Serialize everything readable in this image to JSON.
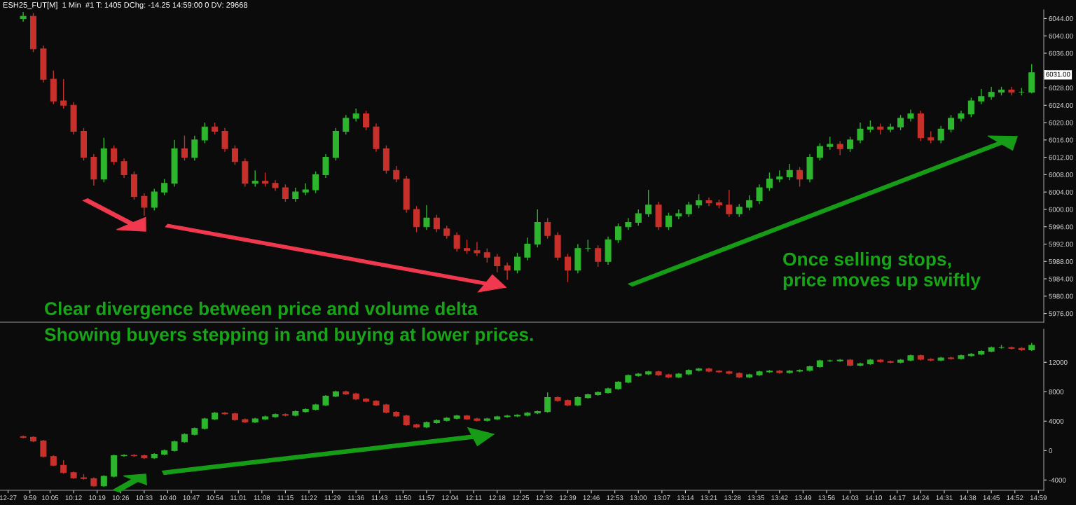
{
  "chart_data": [
    {
      "type": "candlestick",
      "title": "ESH25_FUT[M]  1 Min  #1 T: 1405 DChg: -14.25 14:59:00 0 DV: 29668",
      "colors": [
        "#2db52d",
        "#c8312b",
        "#c8312b",
        "#c8312b",
        "#c8312b",
        "#c8312b",
        "#c8312b",
        "#c8312b",
        "#2db52d",
        "#c8312b",
        "#c8312b",
        "#c8312b",
        "#c8312b",
        "#2db52d",
        "#2db52d",
        "#2db52d",
        "#c8312b",
        "#2db52d",
        "#2db52d",
        "#c8312b",
        "#c8312b",
        "#c8312b",
        "#c8312b",
        "#2db52d",
        "#c8312b",
        "#c8312b",
        "#c8312b",
        "#2db52d",
        "#2db52d",
        "#2db52d",
        "#2db52d",
        "#2db52d",
        "#2db52d",
        "#2db52d",
        "#c8312b",
        "#c8312b",
        "#c8312b",
        "#c8312b",
        "#c8312b",
        "#c8312b",
        "#2db52d",
        "#c8312b",
        "#c8312b",
        "#c8312b",
        "#c8312b",
        "#c8312b",
        "#c8312b",
        "#c8312b",
        "#c8312b",
        "#2db52d",
        "#2db52d",
        "#2db52d",
        "#c8312b",
        "#c8312b",
        "#c8312b",
        "#2db52d",
        "#2db52d",
        "#c8312b",
        "#2db52d",
        "#2db52d",
        "#2db52d",
        "#2db52d",
        "#2db52d",
        "#c8312b",
        "#2db52d",
        "#2db52d",
        "#2db52d",
        "#2db52d",
        "#c8312b",
        "#c8312b",
        "#c8312b",
        "#2db52d",
        "#2db52d",
        "#2db52d",
        "#2db52d",
        "#2db52d",
        "#2db52d",
        "#c8312b",
        "#2db52d",
        "#2db52d",
        "#2db52d",
        "#c8312b",
        "#2db52d",
        "#2db52d",
        "#2db52d",
        "#c8312b",
        "#2db52d",
        "#2db52d",
        "#2db52d",
        "#c8312b",
        "#c8312b",
        "#2db52d",
        "#2db52d",
        "#2db52d",
        "#2db52d",
        "#2db52d",
        "#2db52d",
        "#2db52d",
        "#c8312b",
        "#2db52d",
        "#2db52d"
      ],
      "x": [
        9.95,
        10.0,
        10.05,
        10.1,
        10.15,
        10.2,
        10.25,
        10.3,
        10.35,
        10.4,
        10.45,
        10.5,
        10.55,
        10.6,
        10.65,
        10.7,
        10.75,
        10.8,
        10.85,
        10.9,
        10.95,
        11.0,
        11.05,
        11.1,
        11.15,
        11.2,
        11.25,
        11.3,
        11.35,
        11.4,
        11.45,
        11.5,
        11.55,
        11.6,
        11.65,
        11.7,
        11.75,
        11.8,
        11.85,
        11.9,
        11.95,
        12.0,
        12.05,
        12.1,
        12.15,
        12.2,
        12.25,
        12.3,
        12.35,
        12.4,
        12.45,
        12.5,
        12.55,
        12.6,
        12.65,
        12.7,
        12.75,
        12.8,
        12.85,
        12.9,
        12.95,
        13.0,
        13.05,
        13.1,
        13.15,
        13.2,
        13.25,
        13.3,
        13.35,
        13.4,
        13.45,
        13.5,
        13.55,
        13.6,
        13.65,
        13.7,
        13.75,
        13.8,
        13.85,
        13.9,
        13.95,
        14.0,
        14.05,
        14.1,
        14.15,
        14.2,
        14.25,
        14.3,
        14.35,
        14.4,
        14.45,
        14.5,
        14.55,
        14.6,
        14.65,
        14.7,
        14.75,
        14.8,
        14.85,
        14.9,
        14.95
      ],
      "ohlc": [
        [
          6044,
          6045.5,
          6043.25,
          6044.5
        ],
        [
          6044.5,
          6045.25,
          6036.25,
          6037
        ],
        [
          6037,
          6037.75,
          6029.25,
          6030
        ],
        [
          6030,
          6032,
          6024.25,
          6025
        ],
        [
          6025,
          6030,
          6023.25,
          6024
        ],
        [
          6024,
          6024.75,
          6017.25,
          6018
        ],
        [
          6018,
          6018.75,
          6011.25,
          6012
        ],
        [
          6012,
          6012.75,
          6005.5,
          6007
        ],
        [
          6007,
          6016.5,
          6006.25,
          6014
        ],
        [
          6014,
          6014.75,
          6010.25,
          6011
        ],
        [
          6011,
          6011.75,
          6007.25,
          6008
        ],
        [
          6008,
          6008.75,
          6002.25,
          6003
        ],
        [
          6003,
          6003.75,
          5998.5,
          6000.5
        ],
        [
          6000.5,
          6004.75,
          5999.75,
          6004
        ],
        [
          6004,
          6007,
          6003.25,
          6006
        ],
        [
          6006,
          6016,
          6005.25,
          6014
        ],
        [
          6014,
          6017,
          6011.25,
          6012
        ],
        [
          6012,
          6017,
          6011.25,
          6016
        ],
        [
          6016,
          6020,
          6015.25,
          6019
        ],
        [
          6019,
          6020,
          6017.25,
          6018
        ],
        [
          6018,
          6018.75,
          6013.25,
          6014
        ],
        [
          6014,
          6014.75,
          6010.25,
          6011
        ],
        [
          6011,
          6011.75,
          6005.25,
          6006
        ],
        [
          6006,
          6009,
          6005.25,
          6006.5
        ],
        [
          6006.5,
          6008.5,
          6005.25,
          6006
        ],
        [
          6006,
          6006.75,
          6004.25,
          6005
        ],
        [
          6005,
          6005.75,
          6001.75,
          6002.5
        ],
        [
          6002.5,
          6005,
          6001.75,
          6004
        ],
        [
          6004,
          6006,
          6003.25,
          6004.5
        ],
        [
          6004.5,
          6008.75,
          6003.75,
          6008
        ],
        [
          6008,
          6012.75,
          6007.25,
          6012
        ],
        [
          6012,
          6018.75,
          6011.25,
          6018
        ],
        [
          6018,
          6021.75,
          6017.25,
          6021
        ],
        [
          6021,
          6023.25,
          6020.25,
          6022
        ],
        [
          6022,
          6022.75,
          6018.25,
          6019
        ],
        [
          6019,
          6019.75,
          6013.25,
          6014
        ],
        [
          6014,
          6014.75,
          6008.25,
          6009
        ],
        [
          6009,
          6010,
          6006.25,
          6007
        ],
        [
          6007,
          6007.75,
          5999.25,
          6000
        ],
        [
          6000,
          6000.75,
          5994.75,
          5996
        ],
        [
          5996,
          6001,
          5995.25,
          5998
        ],
        [
          5998,
          5998.75,
          5994.75,
          5995.5
        ],
        [
          5995.5,
          5996.25,
          5993.25,
          5994
        ],
        [
          5994,
          5994.75,
          5990.25,
          5991
        ],
        [
          5991,
          5993,
          5989.75,
          5990.5
        ],
        [
          5990.5,
          5992.5,
          5989.25,
          5990
        ],
        [
          5990,
          5991,
          5987.75,
          5989
        ],
        [
          5989,
          5989.75,
          5985.5,
          5987
        ],
        [
          5987,
          5987.75,
          5983.75,
          5986
        ],
        [
          5986,
          5990,
          5985.25,
          5989
        ],
        [
          5989,
          5993.5,
          5988.25,
          5992
        ],
        [
          5992,
          6000,
          5991.25,
          5997
        ],
        [
          5997,
          5998,
          5993.25,
          5994
        ],
        [
          5994,
          5994.75,
          5988.25,
          5989
        ],
        [
          5989,
          5989.75,
          5983.25,
          5986
        ],
        [
          5986,
          5992,
          5985.25,
          5991
        ],
        [
          5991,
          5993,
          5990.25,
          5991
        ],
        [
          5991,
          5991.75,
          5986.75,
          5988
        ],
        [
          5988,
          5993.75,
          5987.25,
          5993
        ],
        [
          5993,
          5996.75,
          5992.25,
          5996
        ],
        [
          5996,
          5998,
          5995.25,
          5997
        ],
        [
          5997,
          6000,
          5996.25,
          5999
        ],
        [
          5999,
          6004.5,
          5998.25,
          6001
        ],
        [
          6001,
          6001.75,
          5995.25,
          5996
        ],
        [
          5996,
          5999.25,
          5995.25,
          5998.5
        ],
        [
          5998.5,
          6000,
          5997.75,
          5999
        ],
        [
          5999,
          6001.75,
          5998.25,
          6001
        ],
        [
          6001,
          6003.5,
          6000.25,
          6002
        ],
        [
          6002,
          6002.75,
          6000.75,
          6001.5
        ],
        [
          6001.5,
          6002.25,
          6000.25,
          6001
        ],
        [
          6001,
          6004.5,
          5998.25,
          5999
        ],
        [
          5999,
          6001.25,
          5998.25,
          6000.5
        ],
        [
          6000.5,
          6003.25,
          5999.75,
          6002
        ],
        [
          6002,
          6005.75,
          6001.25,
          6005
        ],
        [
          6005,
          6008.5,
          6004.25,
          6007
        ],
        [
          6007,
          6009,
          6006.25,
          6007.5
        ],
        [
          6007.5,
          6010.5,
          6006.75,
          6009
        ],
        [
          6009,
          6009.75,
          6005.25,
          6007
        ],
        [
          6007,
          6012.75,
          6006.25,
          6012
        ],
        [
          6012,
          6015.25,
          6011.25,
          6014.5
        ],
        [
          6014.5,
          6016.75,
          6013.75,
          6015
        ],
        [
          6015,
          6015.75,
          6012.5,
          6014
        ],
        [
          6014,
          6016.75,
          6013.25,
          6016
        ],
        [
          6016,
          6020,
          6015.25,
          6018.5
        ],
        [
          6018.5,
          6020.5,
          6017.75,
          6019
        ],
        [
          6019,
          6019.75,
          6017.25,
          6018.5
        ],
        [
          6018.5,
          6019.75,
          6017.75,
          6019
        ],
        [
          6019,
          6021.75,
          6018.25,
          6021
        ],
        [
          6021,
          6023,
          6020.25,
          6022
        ],
        [
          6022,
          6022.75,
          6015.75,
          6016.5
        ],
        [
          6016.5,
          6018,
          6015.25,
          6016
        ],
        [
          6016,
          6019.25,
          6015.25,
          6018.5
        ],
        [
          6018.5,
          6021.75,
          6017.75,
          6021
        ],
        [
          6021,
          6022.75,
          6020.25,
          6022
        ],
        [
          6022,
          6025.75,
          6021.25,
          6025
        ],
        [
          6025,
          6027.75,
          6024.25,
          6026
        ],
        [
          6026,
          6028.25,
          6025.25,
          6027
        ],
        [
          6027,
          6028.25,
          6026.25,
          6027.5
        ],
        [
          6027.5,
          6028.25,
          6026.25,
          6027
        ],
        [
          6027,
          6028,
          6026.25,
          6027
        ],
        [
          6027,
          6033.5,
          6026.75,
          6031.5
        ]
      ],
      "xlim": [
        9.835,
        15.01
      ],
      "ylim": [
        5974,
        6046
      ],
      "tick_labels": "y",
      "yticks": [
        {
          "value": 5976,
          "label": "5976.00"
        },
        {
          "value": 5980,
          "label": "5980.00"
        },
        {
          "value": 5984,
          "label": "5984.00"
        },
        {
          "value": 5988,
          "label": "5988.00"
        },
        {
          "value": 5992,
          "label": "5992.00"
        },
        {
          "value": 5996,
          "label": "5996.00"
        },
        {
          "value": 6000,
          "label": "6000.00"
        },
        {
          "value": 6004,
          "label": "6004.00"
        },
        {
          "value": 6008,
          "label": "6008.00"
        },
        {
          "value": 6012,
          "label": "6012.00"
        },
        {
          "value": 6016,
          "label": "6016.00"
        },
        {
          "value": 6020,
          "label": "6020.00"
        },
        {
          "value": 6024,
          "label": "6024.00"
        },
        {
          "value": 6028,
          "label": "6028.00"
        },
        {
          "value": 6032,
          "label": null
        },
        {
          "value": 6036,
          "label": "6036.00"
        },
        {
          "value": 6040,
          "label": "6040.00"
        },
        {
          "value": 6044,
          "label": "6044.00"
        }
      ],
      "annotations": [
        "Clear divergence between price and volume delta",
        "Showing buyers stepping in and buying at lower prices.",
        "Once selling stops,\nprice moves up swiftly",
        {
          "text": "6031.00",
          "y": 6031
        }
      ]
    },
    {
      "type": "candlestick",
      "colors": [
        "#c8312b",
        "#c8312b",
        "#c8312b",
        "#c8312b",
        "#c8312b",
        "#c8312b",
        "#c8312b",
        "#c8312b",
        "#2db52d",
        "#2db52d",
        "#2db52d",
        "#c8312b",
        "#c8312b",
        "#2db52d",
        "#2db52d",
        "#2db52d",
        "#2db52d",
        "#2db52d",
        "#2db52d",
        "#2db52d",
        "#c8312b",
        "#c8312b",
        "#c8312b",
        "#2db52d",
        "#2db52d",
        "#2db52d",
        "#c8312b",
        "#2db52d",
        "#2db52d",
        "#2db52d",
        "#2db52d",
        "#2db52d",
        "#c8312b",
        "#c8312b",
        "#c8312b",
        "#c8312b",
        "#c8312b",
        "#c8312b",
        "#c8312b",
        "#c8312b",
        "#2db52d",
        "#2db52d",
        "#2db52d",
        "#2db52d",
        "#c8312b",
        "#c8312b",
        "#2db52d",
        "#2db52d",
        "#2db52d",
        "#2db52d",
        "#2db52d",
        "#2db52d",
        "#2db52d",
        "#c8312b",
        "#c8312b",
        "#2db52d",
        "#2db52d",
        "#2db52d",
        "#2db52d",
        "#2db52d",
        "#2db52d",
        "#2db52d",
        "#2db52d",
        "#c8312b",
        "#c8312b",
        "#2db52d",
        "#2db52d",
        "#2db52d",
        "#c8312b",
        "#c8312b",
        "#c8312b",
        "#c8312b",
        "#2db52d",
        "#2db52d",
        "#2db52d",
        "#c8312b",
        "#2db52d",
        "#2db52d",
        "#2db52d",
        "#2db52d",
        "#2db52d",
        "#2db52d",
        "#c8312b",
        "#2db52d",
        "#2db52d",
        "#c8312b",
        "#c8312b",
        "#2db52d",
        "#2db52d",
        "#c8312b",
        "#c8312b",
        "#2db52d",
        "#c8312b",
        "#2db52d",
        "#2db52d",
        "#2db52d",
        "#2db52d",
        "#2db52d",
        "#c8312b",
        "#c8312b",
        "#2db52d"
      ],
      "x": [
        9.95,
        10.0,
        10.05,
        10.1,
        10.15,
        10.2,
        10.25,
        10.3,
        10.35,
        10.4,
        10.45,
        10.5,
        10.55,
        10.6,
        10.65,
        10.7,
        10.75,
        10.8,
        10.85,
        10.9,
        10.95,
        11.0,
        11.05,
        11.1,
        11.15,
        11.2,
        11.25,
        11.3,
        11.35,
        11.4,
        11.45,
        11.5,
        11.55,
        11.6,
        11.65,
        11.7,
        11.75,
        11.8,
        11.85,
        11.9,
        11.95,
        12.0,
        12.05,
        12.1,
        12.15,
        12.2,
        12.25,
        12.3,
        12.35,
        12.4,
        12.45,
        12.5,
        12.55,
        12.6,
        12.65,
        12.7,
        12.75,
        12.8,
        12.85,
        12.9,
        12.95,
        13.0,
        13.05,
        13.1,
        13.15,
        13.2,
        13.25,
        13.3,
        13.35,
        13.4,
        13.45,
        13.5,
        13.55,
        13.6,
        13.65,
        13.7,
        13.75,
        13.8,
        13.85,
        13.9,
        13.95,
        14.0,
        14.05,
        14.1,
        14.15,
        14.2,
        14.25,
        14.3,
        14.35,
        14.4,
        14.45,
        14.5,
        14.55,
        14.6,
        14.65,
        14.7,
        14.75,
        14.8,
        14.85,
        14.9,
        14.95
      ],
      "ohlc": [
        [
          1900,
          2050,
          1650,
          1800
        ],
        [
          1800,
          1950,
          1150,
          1300
        ],
        [
          1300,
          1450,
          -950,
          -800
        ],
        [
          -800,
          -650,
          -2150,
          -2000
        ],
        [
          -2000,
          -1300,
          -3150,
          -3000
        ],
        [
          -3000,
          -2850,
          -3850,
          -3700
        ],
        [
          -3700,
          -3200,
          -3950,
          -3800
        ],
        [
          -3800,
          -3650,
          -4950,
          -4800
        ],
        [
          -4800,
          -3350,
          -4950,
          -3500
        ],
        [
          -3500,
          -550,
          -3650,
          -700
        ],
        [
          -700,
          -500,
          -850,
          -650
        ],
        [
          -650,
          -500,
          -850,
          -700
        ],
        [
          -700,
          -550,
          -1150,
          -1000
        ],
        [
          -1000,
          -350,
          -1150,
          -500
        ],
        [
          -500,
          150,
          -650,
          0
        ],
        [
          0,
          1350,
          -150,
          1200
        ],
        [
          1200,
          2350,
          1050,
          2200
        ],
        [
          2200,
          3150,
          2050,
          3000
        ],
        [
          3000,
          4450,
          2850,
          4300
        ],
        [
          4300,
          5250,
          4150,
          5100
        ],
        [
          5100,
          5250,
          4850,
          5000
        ],
        [
          5000,
          5150,
          4050,
          4200
        ],
        [
          4200,
          4350,
          3750,
          3900
        ],
        [
          3900,
          4450,
          3750,
          4300
        ],
        [
          4300,
          4750,
          4150,
          4600
        ],
        [
          4600,
          5050,
          4450,
          4900
        ],
        [
          4900,
          5050,
          4650,
          4800
        ],
        [
          4800,
          5450,
          4650,
          5300
        ],
        [
          5300,
          5750,
          5150,
          5600
        ],
        [
          5600,
          6350,
          5450,
          6200
        ],
        [
          6200,
          7550,
          6050,
          7400
        ],
        [
          7400,
          8150,
          7250,
          8000
        ],
        [
          8000,
          8150,
          7550,
          7700
        ],
        [
          7700,
          7850,
          6850,
          7000
        ],
        [
          7000,
          7150,
          6550,
          6700
        ],
        [
          6700,
          6850,
          6050,
          6200
        ],
        [
          6200,
          6350,
          5050,
          5200
        ],
        [
          5200,
          5350,
          4550,
          4700
        ],
        [
          4700,
          4850,
          3350,
          3500
        ],
        [
          3500,
          3650,
          3050,
          3200
        ],
        [
          3200,
          3950,
          3050,
          3800
        ],
        [
          3800,
          4250,
          3650,
          4100
        ],
        [
          4100,
          4550,
          3950,
          4400
        ],
        [
          4400,
          4850,
          4250,
          4700
        ],
        [
          4700,
          4850,
          4150,
          4300
        ],
        [
          4300,
          4450,
          3950,
          4100
        ],
        [
          4100,
          4450,
          3950,
          4300
        ],
        [
          4300,
          4750,
          4150,
          4600
        ],
        [
          4600,
          4850,
          4450,
          4700
        ],
        [
          4700,
          4950,
          4550,
          4800
        ],
        [
          4800,
          5250,
          4650,
          5100
        ],
        [
          5100,
          5450,
          4950,
          5300
        ],
        [
          5300,
          7900,
          5150,
          7200
        ],
        [
          7200,
          7350,
          6650,
          6800
        ],
        [
          6800,
          6950,
          6050,
          6200
        ],
        [
          6200,
          7350,
          6050,
          7200
        ],
        [
          7200,
          7750,
          7050,
          7600
        ],
        [
          7600,
          8050,
          7450,
          7900
        ],
        [
          7900,
          8550,
          7750,
          8400
        ],
        [
          8400,
          9450,
          8250,
          9300
        ],
        [
          9300,
          10350,
          9150,
          10200
        ],
        [
          10200,
          10550,
          10050,
          10400
        ],
        [
          10400,
          10850,
          10250,
          10700
        ],
        [
          10700,
          10850,
          10150,
          10300
        ],
        [
          10300,
          10450,
          9850,
          10000
        ],
        [
          10000,
          10550,
          9850,
          10400
        ],
        [
          10400,
          11050,
          10250,
          10900
        ],
        [
          10900,
          11250,
          10750,
          11100
        ],
        [
          11100,
          11250,
          10650,
          10800
        ],
        [
          10800,
          10950,
          10550,
          10700
        ],
        [
          10700,
          10850,
          10350,
          10500
        ],
        [
          10500,
          10650,
          9850,
          10000
        ],
        [
          10000,
          10450,
          9850,
          10300
        ],
        [
          10300,
          10850,
          10150,
          10700
        ],
        [
          10700,
          10950,
          10550,
          10800
        ],
        [
          10800,
          10950,
          10450,
          10600
        ],
        [
          10600,
          10950,
          10450,
          10800
        ],
        [
          10800,
          11050,
          10650,
          10900
        ],
        [
          10900,
          11550,
          10750,
          11400
        ],
        [
          11400,
          12350,
          11250,
          12200
        ],
        [
          12200,
          12350,
          12050,
          12200
        ],
        [
          12200,
          12450,
          12050,
          12300
        ],
        [
          12300,
          12450,
          11450,
          11600
        ],
        [
          11600,
          11950,
          11450,
          11800
        ],
        [
          11800,
          12450,
          11650,
          12300
        ],
        [
          12300,
          12450,
          11950,
          12100
        ],
        [
          12100,
          12250,
          11850,
          12000
        ],
        [
          12000,
          12450,
          11850,
          12300
        ],
        [
          12300,
          13050,
          12150,
          12900
        ],
        [
          12900,
          13050,
          12250,
          12400
        ],
        [
          12400,
          12550,
          12150,
          12300
        ],
        [
          12300,
          12750,
          12150,
          12600
        ],
        [
          12600,
          12750,
          12350,
          12500
        ],
        [
          12500,
          13050,
          12350,
          12900
        ],
        [
          12900,
          13250,
          12750,
          13100
        ],
        [
          13100,
          13650,
          12950,
          13500
        ],
        [
          13500,
          14150,
          13350,
          14000
        ],
        [
          14000,
          14350,
          13850,
          14000
        ],
        [
          14000,
          14150,
          13750,
          13900
        ],
        [
          13900,
          14050,
          13550,
          13700
        ],
        [
          13700,
          14650,
          13550,
          14300
        ]
      ],
      "xlim": [
        9.835,
        15.01
      ],
      "ylim": [
        -5400,
        16500
      ],
      "yticks": [
        -4000,
        0,
        4000,
        8000,
        12000
      ],
      "xticks": [
        {
          "value": 9.875,
          "label": "12-27"
        },
        {
          "value": 9.9833,
          "label": "9:59"
        },
        {
          "value": 10.0833,
          "label": "10:05"
        },
        {
          "value": 10.2,
          "label": "10:12"
        },
        {
          "value": 10.3167,
          "label": "10:19"
        },
        {
          "value": 10.4333,
          "label": "10:26"
        },
        {
          "value": 10.55,
          "label": "10:33"
        },
        {
          "value": 10.6667,
          "label": "10:40"
        },
        {
          "value": 10.7833,
          "label": "10:47"
        },
        {
          "value": 10.9,
          "label": "10:54"
        },
        {
          "value": 11.0167,
          "label": "11:01"
        },
        {
          "value": 11.1333,
          "label": "11:08"
        },
        {
          "value": 11.25,
          "label": "11:15"
        },
        {
          "value": 11.3667,
          "label": "11:22"
        },
        {
          "value": 11.4833,
          "label": "11:29"
        },
        {
          "value": 11.6,
          "label": "11:36"
        },
        {
          "value": 11.7167,
          "label": "11:43"
        },
        {
          "value": 11.8333,
          "label": "11:50"
        },
        {
          "value": 11.95,
          "label": "11:57"
        },
        {
          "value": 12.0667,
          "label": "12:04"
        },
        {
          "value": 12.1833,
          "label": "12:11"
        },
        {
          "value": 12.3,
          "label": "12:18"
        },
        {
          "value": 12.4167,
          "label": "12:25"
        },
        {
          "value": 12.5333,
          "label": "12:32"
        },
        {
          "value": 12.65,
          "label": "12:39"
        },
        {
          "value": 12.7667,
          "label": "12:46"
        },
        {
          "value": 12.8833,
          "label": "12:53"
        },
        {
          "value": 13.0,
          "label": "13:00"
        },
        {
          "value": 13.1167,
          "label": "13:07"
        },
        {
          "value": 13.2333,
          "label": "13:14"
        },
        {
          "value": 13.35,
          "label": "13:21"
        },
        {
          "value": 13.4667,
          "label": "13:28"
        },
        {
          "value": 13.5833,
          "label": "13:35"
        },
        {
          "value": 13.7,
          "label": "13:42"
        },
        {
          "value": 13.8167,
          "label": "13:49"
        },
        {
          "value": 13.9333,
          "label": "13:56"
        },
        {
          "value": 14.05,
          "label": "14:03"
        },
        {
          "value": 14.1667,
          "label": "14:10"
        },
        {
          "value": 14.2833,
          "label": "14:17"
        },
        {
          "value": 14.4,
          "label": "14:24"
        },
        {
          "value": 14.5167,
          "label": "14:31"
        },
        {
          "value": 14.6333,
          "label": "14:38"
        },
        {
          "value": 14.75,
          "label": "14:45"
        },
        {
          "value": 14.8667,
          "label": "14:52"
        },
        {
          "value": 14.9833,
          "label": "14:59"
        }
      ]
    }
  ]
}
